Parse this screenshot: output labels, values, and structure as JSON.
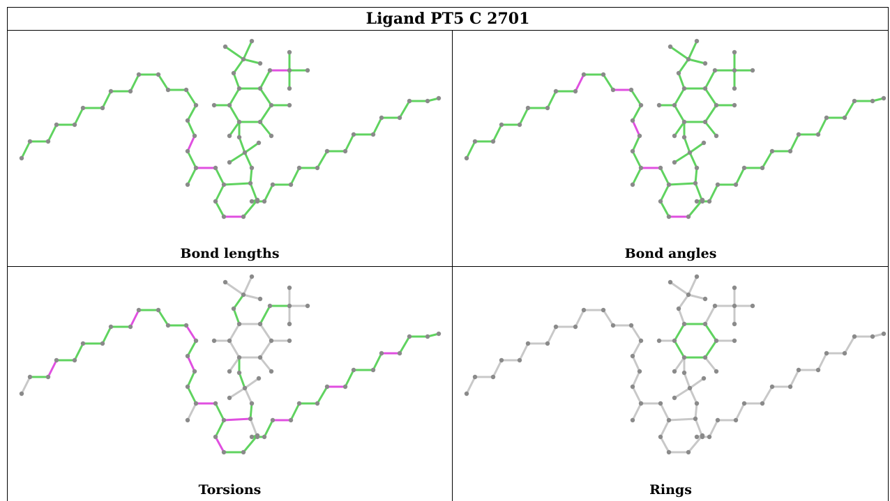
{
  "title": "Ligand PT5 C 2701",
  "colors": {
    "good": "#5fd35f",
    "outlier": "#e04fe0",
    "neutral": "#c8c8c8",
    "atom": "#8a8a8a"
  },
  "panels": [
    {
      "caption": "Bond lengths"
    },
    {
      "caption": "Bond angles"
    },
    {
      "caption": "Torsions"
    },
    {
      "caption": "Rings"
    }
  ]
}
